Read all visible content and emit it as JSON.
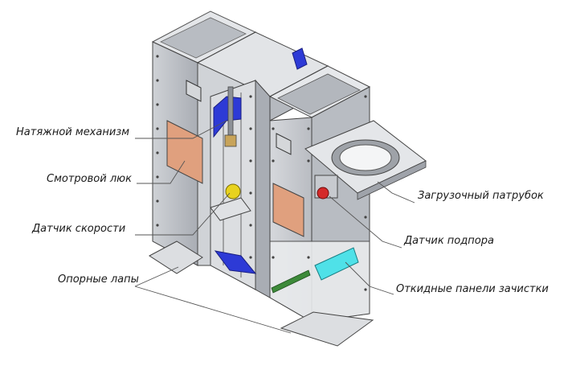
{
  "callouts": {
    "tension": "Натяжной механизм",
    "inspection_hatch": "Смотровой люк",
    "speed_sensor": "Датчик скорости",
    "support_feet": "Опорные лапы",
    "inlet": "Загрузочный патрубок",
    "backup_sensor": "Датчик подпора",
    "cleaning_panels": "Откидные панели зачистки"
  },
  "colors": {
    "steel": "#c9ccd1",
    "steel_light": "#e4e6e9",
    "steel_dark": "#9fa3aa",
    "inspection_panel": "#e0a07e",
    "tension_bracket": "#2d3ad6",
    "speed_sensor": "#e8d21e",
    "cleaning_panel": "#4fe1e8",
    "sensor_red": "#d42a2a",
    "guide_strip": "#3d8a3a"
  }
}
